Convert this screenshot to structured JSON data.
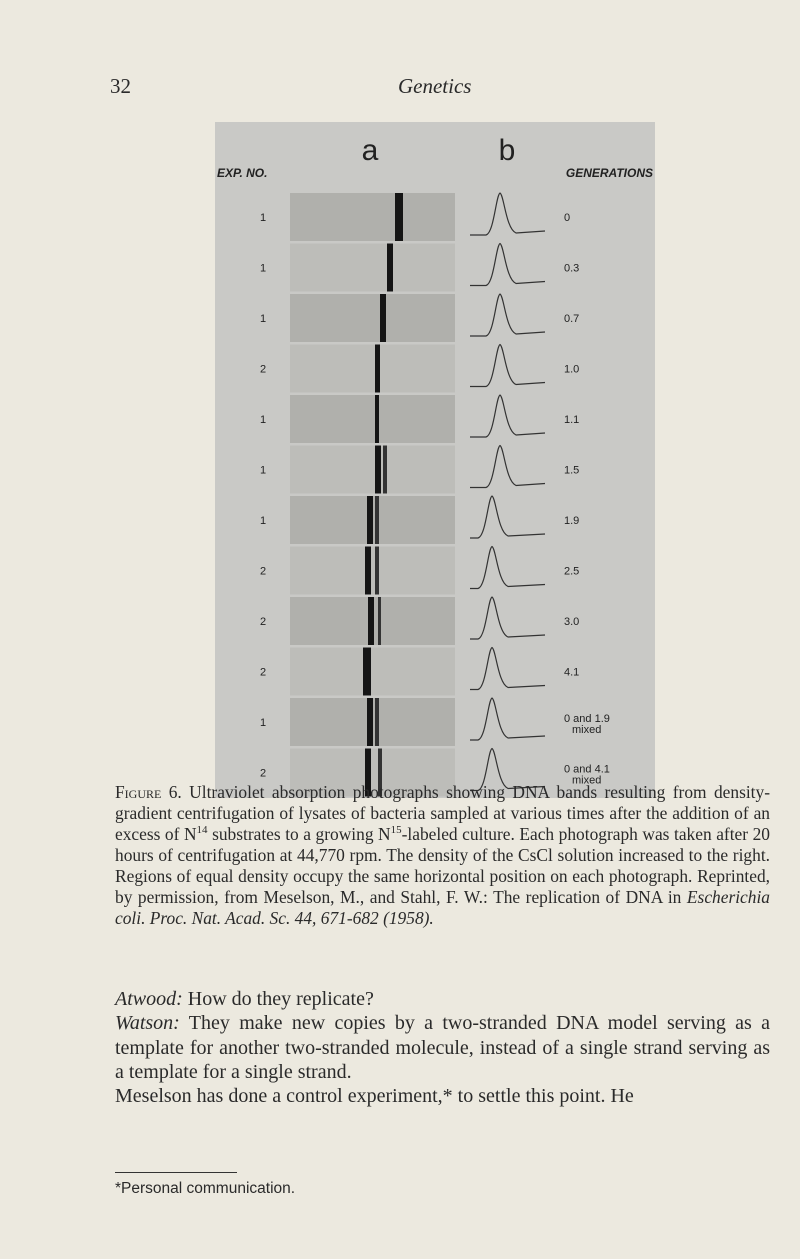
{
  "header": {
    "page_number": "32",
    "title": "Genetics"
  },
  "figure": {
    "panel_a": "a",
    "panel_b": "b",
    "left_heading": "EXP. NO.",
    "right_heading": "GENERATIONS",
    "rows": [
      {
        "exp": "1",
        "gen": "0"
      },
      {
        "exp": "1",
        "gen": "0.3"
      },
      {
        "exp": "1",
        "gen": "0.7"
      },
      {
        "exp": "2",
        "gen": "1.0"
      },
      {
        "exp": "1",
        "gen": "1.1"
      },
      {
        "exp": "1",
        "gen": "1.5"
      },
      {
        "exp": "1",
        "gen": "1.9"
      },
      {
        "exp": "2",
        "gen": "2.5"
      },
      {
        "exp": "2",
        "gen": "3.0"
      },
      {
        "exp": "2",
        "gen": "4.1"
      },
      {
        "exp": "1",
        "gen": "0 and 1.9",
        "note": "mixed"
      },
      {
        "exp": "2",
        "gen": "0 and 4.1",
        "note": "mixed"
      }
    ]
  },
  "caption": {
    "label": "Figure 6.",
    "parts": [
      " Ultraviolet absorption photographs showing DNA bands resulting from density-gradient centrifugation of lysates of bacteria sampled at various times after the addition of an excess of N",
      "14",
      " substrates to a growing N",
      "15",
      "-labeled culture. Each photograph was taken after 20 hours of centrifugation at 44,770 rpm. The density of the CsCl solution increased to the right. Regions of equal density occupy the same horizontal position on each photograph. Reprinted, by permission, from Meselson, M., and Stahl, F. W.: The replication of DNA in ",
      "Escherichia coli. Proc. Nat. Acad. Sc. 44, 671-682 (1958)."
    ]
  },
  "body": {
    "paragraphs": [
      {
        "speaker": "Atwood:",
        "text": " How do they replicate?"
      },
      {
        "speaker": "Watson:",
        "text": " They make new copies by a two-stranded DNA model serving as a template for another two-stranded molecule, instead of a single strand serving as a template for a single strand."
      },
      {
        "text": "Meselson has done a control experiment,* to settle this point. He"
      }
    ]
  },
  "footnote": "*Personal communication."
}
